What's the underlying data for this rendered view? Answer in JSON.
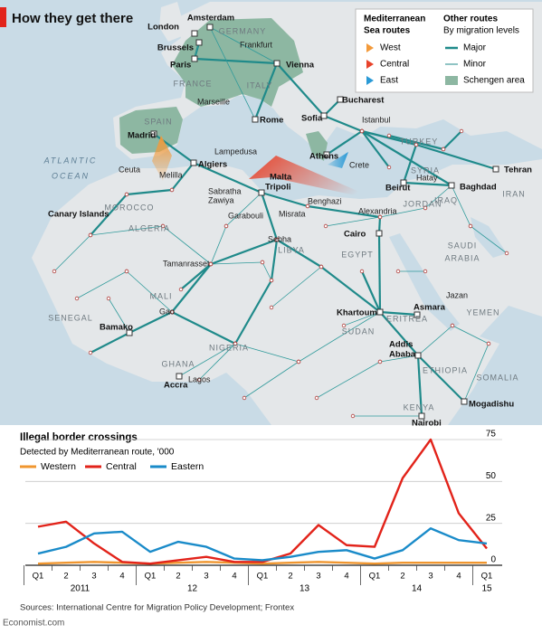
{
  "map": {
    "title": "How they get there",
    "legend": {
      "med_title_1": "Mediterranean",
      "med_title_2": "Sea routes",
      "west": "West",
      "central": "Central",
      "east": "East",
      "other_title": "Other routes",
      "other_subtitle": "By migration levels",
      "major": "Major",
      "minor": "Minor",
      "schengen": "Schengen area"
    },
    "cities": [
      "London",
      "Amsterdam",
      "Brussels",
      "Frankfurt",
      "Paris",
      "Vienna",
      "Marseille",
      "Rome",
      "Bucharest",
      "Sofia",
      "Istanbul",
      "Madrid",
      "Athens",
      "Lampedusa",
      "Malta",
      "Crete",
      "Algiers",
      "Ceuta",
      "Melilla",
      "Hatay",
      "Tehran",
      "Beirut",
      "Baghdad",
      "Sabratha",
      "Zawiya",
      "Tripoli",
      "Benghazi",
      "Canary Islands",
      "Garabouli",
      "Misrata",
      "Alexandria",
      "Cairo",
      "Sebha",
      "Tamanrasset",
      "Jazan",
      "Khartoum",
      "Asmara",
      "Gao",
      "Bamako",
      "Addis",
      "Ababa",
      "Lagos",
      "Accra",
      "Mogadishu",
      "Nairobi"
    ],
    "regions": [
      "GERMANY",
      "FRANCE",
      "ITALY",
      "SPAIN",
      "TURKEY",
      "SYRIA",
      "IRAN",
      "IRAQ",
      "JORDAN",
      "MOROCCO",
      "ALGERIA",
      "LIBYA",
      "EGYPT",
      "SAUDI",
      "ARABIA",
      "MALI",
      "ERITREA",
      "SENEGAL",
      "YEMEN",
      "SUDAN",
      "NIGERIA",
      "GHANA",
      "ETHIOPIA",
      "SOMALIA",
      "KENYA",
      "ATLANTIC",
      "OCEAN"
    ]
  },
  "chart_data": {
    "type": "line",
    "title": "Illegal border crossings",
    "subtitle": "Detected by Mediterranean route, '000",
    "categories": [
      "Q1",
      "2",
      "3",
      "4",
      "Q1",
      "2",
      "3",
      "4",
      "Q1",
      "2",
      "3",
      "4",
      "Q1",
      "2",
      "3",
      "4",
      "Q1"
    ],
    "year_labels": [
      "2011",
      "12",
      "13",
      "14",
      "15"
    ],
    "series": [
      {
        "name": "Western",
        "color": "#f0962f",
        "values": [
          1,
          1.5,
          2,
          1.5,
          1,
          1.5,
          2,
          1.5,
          1,
          1.5,
          2,
          1.5,
          1,
          1.5,
          1.5,
          1.5,
          1.5
        ]
      },
      {
        "name": "Central",
        "color": "#e2231a",
        "values": [
          23,
          26,
          13,
          2,
          1,
          3,
          5,
          2,
          2,
          7,
          24,
          12,
          11,
          52,
          75,
          31,
          10
        ]
      },
      {
        "name": "Eastern",
        "color": "#1a8bc9",
        "values": [
          7,
          11,
          19,
          20,
          8,
          14,
          11,
          4,
          3,
          5,
          8,
          9,
          4,
          9,
          22,
          15,
          13
        ]
      }
    ],
    "ylim": [
      0,
      75
    ],
    "yticks": [
      0,
      25,
      50,
      75
    ],
    "grid": true,
    "sources": "Sources: International Centre for Migration Policy Development; Frontex",
    "credit": "Economist.com"
  }
}
